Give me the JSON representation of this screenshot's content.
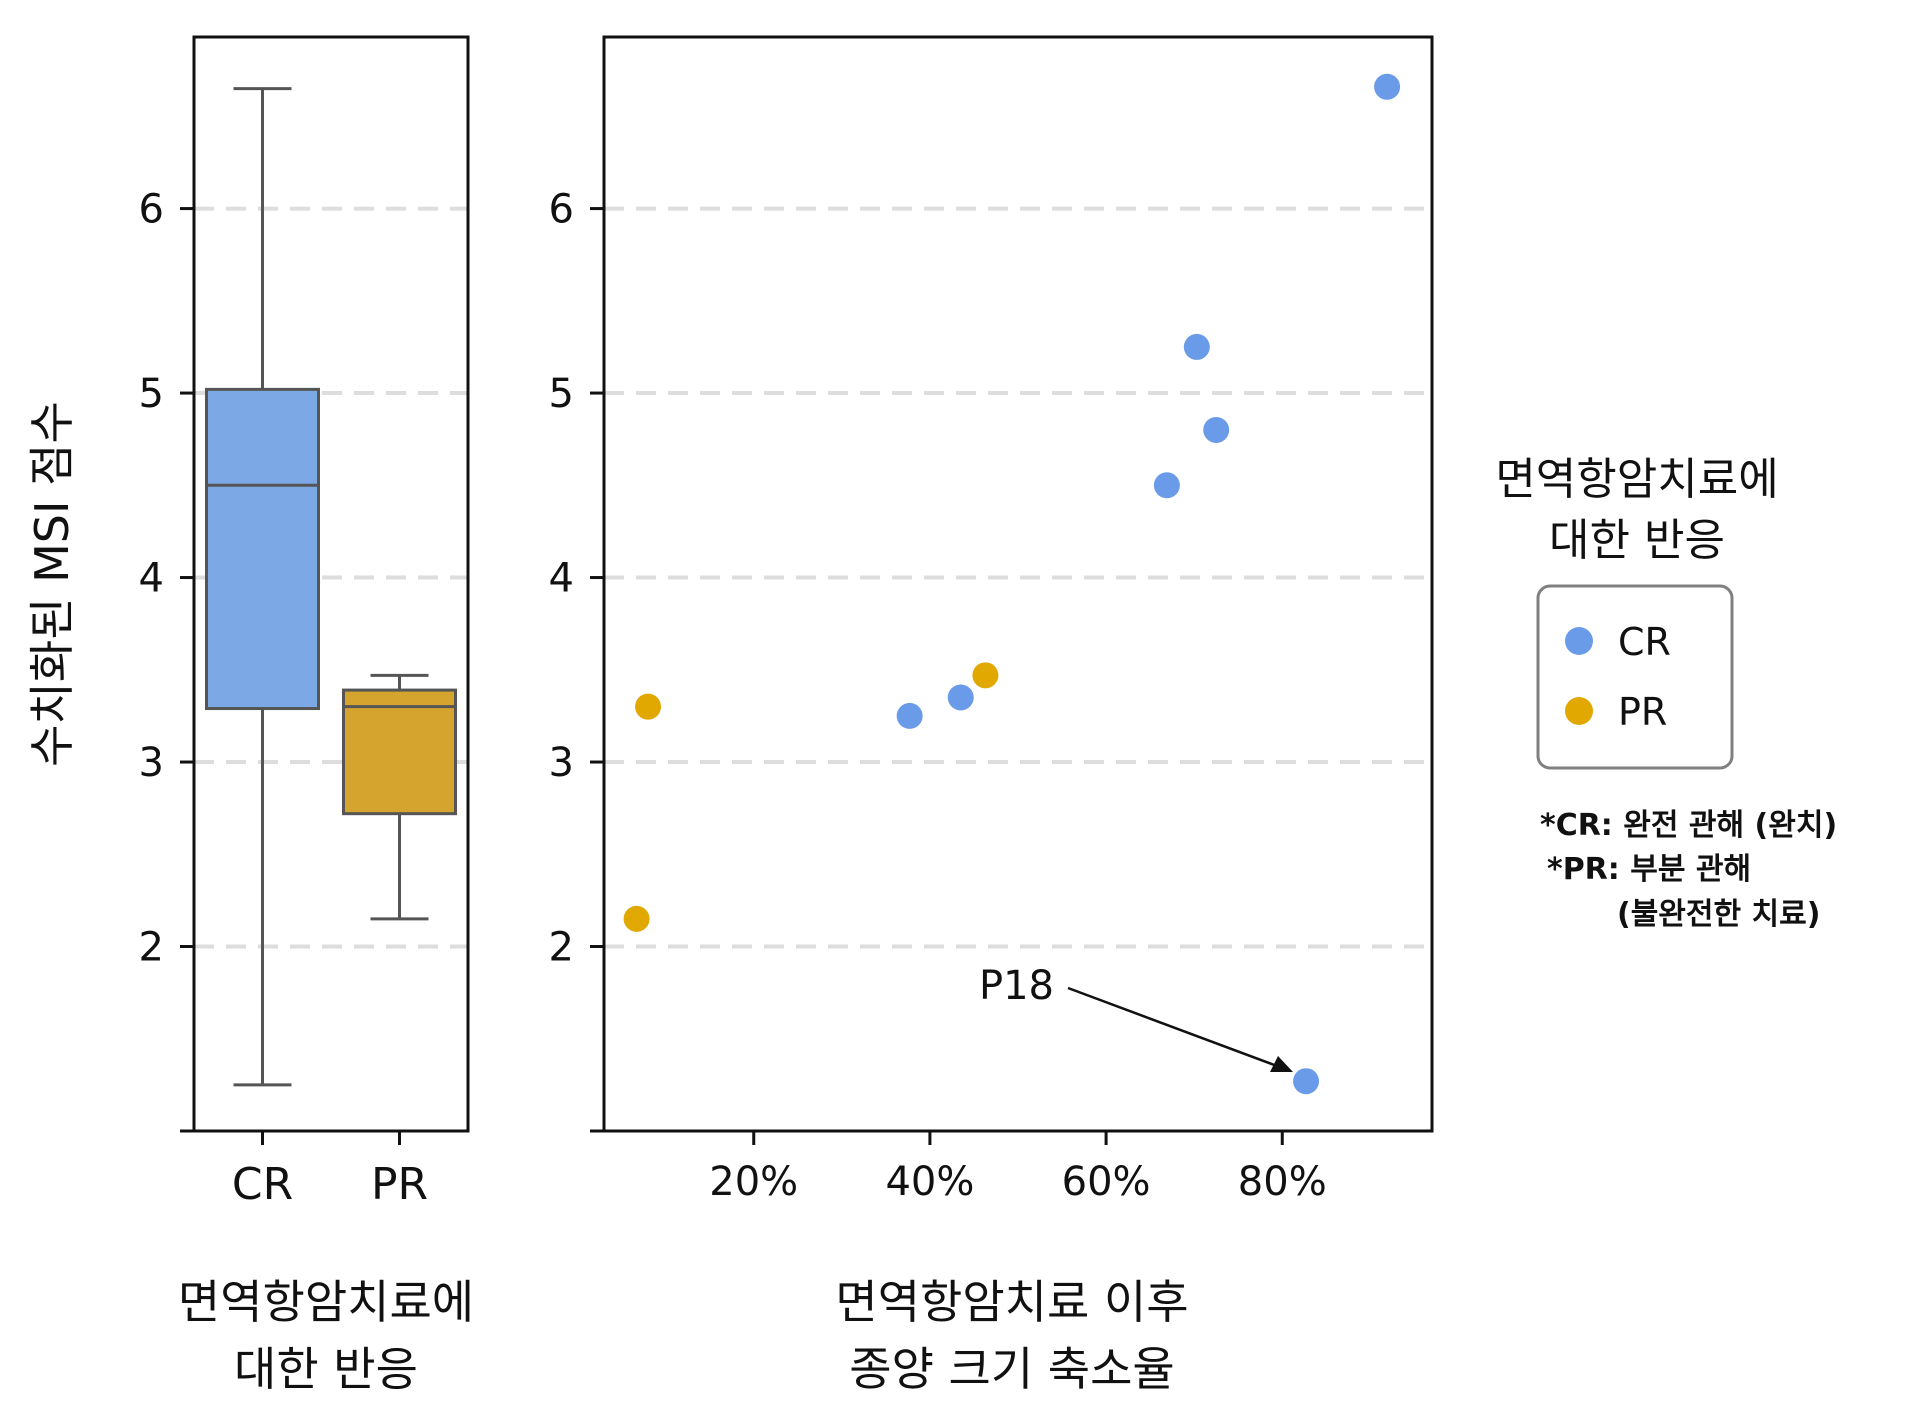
{
  "colors": {
    "CR": "#6a9be8",
    "PR": "#e0a800",
    "CR_box": "#7ca8e6",
    "PR_box": "#d4a42e",
    "box_edge": "#555555",
    "grid": "#dddddd",
    "axis": "#111111",
    "annotation_arrow": "#111111",
    "legend_border": "#808080"
  },
  "chart_data": [
    {
      "type": "box",
      "ylabel": "수치화된 MSI 점수",
      "xlabel_lines": [
        "면역항암치료에",
        "대한 반응"
      ],
      "categories": [
        "CR",
        "PR"
      ],
      "boxes": [
        {
          "name": "CR",
          "whisker_low": 1.25,
          "q1": 3.29,
          "median": 4.5,
          "q3": 5.02,
          "whisker_high": 6.65
        },
        {
          "name": "PR",
          "whisker_low": 2.15,
          "q1": 2.72,
          "median": 3.3,
          "q3": 3.39,
          "whisker_high": 3.47
        }
      ],
      "yticks": [
        2,
        3,
        4,
        5,
        6
      ],
      "ylim": [
        1.0,
        6.93
      ],
      "grid": "horizontal dashed"
    },
    {
      "type": "scatter",
      "xlabel_lines": [
        "면역항암치료 이후",
        "종양 크기 축소율"
      ],
      "xticks": [
        20,
        40,
        60,
        80
      ],
      "xtick_labels": [
        "20%",
        "40%",
        "60%",
        "80%"
      ],
      "xlim": [
        3,
        97
      ],
      "yticks": [
        2,
        3,
        4,
        5,
        6
      ],
      "ylim": [
        1.0,
        6.93
      ],
      "grid": "horizontal dashed",
      "series": [
        {
          "name": "CR",
          "points": [
            {
              "x": 37.7,
              "y": 3.25
            },
            {
              "x": 43.5,
              "y": 3.35
            },
            {
              "x": 66.9,
              "y": 4.5
            },
            {
              "x": 70.3,
              "y": 5.25
            },
            {
              "x": 72.5,
              "y": 4.8
            },
            {
              "x": 82.7,
              "y": 1.27
            },
            {
              "x": 91.9,
              "y": 6.66
            }
          ]
        },
        {
          "name": "PR",
          "points": [
            {
              "x": 6.7,
              "y": 2.15
            },
            {
              "x": 8.0,
              "y": 3.3
            },
            {
              "x": 46.3,
              "y": 3.47
            }
          ]
        }
      ],
      "annotation": {
        "text": "P18",
        "target": {
          "x": 82.7,
          "y": 1.27
        }
      }
    }
  ],
  "legend": {
    "title_lines": [
      "면역항암치료에",
      "대한 반응"
    ],
    "items": [
      {
        "label": "CR",
        "key": "CR"
      },
      {
        "label": "PR",
        "key": "PR"
      }
    ],
    "placement": "right"
  },
  "notes": [
    "*CR: 완전 관해 (완치)",
    "*PR: 부분 관해",
    "(불완전한 치료)"
  ]
}
